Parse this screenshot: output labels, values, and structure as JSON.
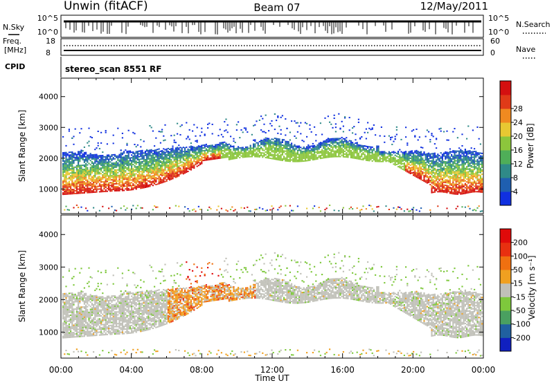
{
  "header": {
    "title": "Unwin (fitACF)",
    "beam": "Beam 07",
    "date": "12/May/2011"
  },
  "nsky": {
    "label": "N.Sky",
    "ticks": [
      "10^5",
      "10^0"
    ],
    "right_label": "N.Search",
    "right_ticks": [
      "10^5",
      "10^0"
    ]
  },
  "freq": {
    "label_line1": "Freq.",
    "label_line2": "[MHz]",
    "ticks": [
      "18",
      "8"
    ],
    "right_label": "Nave",
    "right_ticks": [
      "60",
      "0"
    ]
  },
  "cpid": {
    "label": "CPID",
    "text": "stereo_scan 8551 RF"
  },
  "x_axis": {
    "ticks": [
      "00:00",
      "04:00",
      "08:00",
      "12:00",
      "16:00",
      "20:00",
      "00:00"
    ],
    "label": "Time UT"
  },
  "chart_data": [
    {
      "type": "heatmap",
      "panel": "power",
      "ylabel": "Slant Range [km]",
      "yticks": [
        "1000",
        "2000",
        "3000",
        "4000"
      ],
      "ylim": [
        200,
        4600
      ],
      "xlim_hours": [
        0,
        24
      ],
      "colorbar": {
        "label": "Power [dB]",
        "ticks": [
          "4",
          "8",
          "12",
          "16",
          "20",
          "24",
          "28"
        ],
        "colors": [
          "#1030e0",
          "#1f5fb0",
          "#2f8a88",
          "#4fae58",
          "#8cc63c",
          "#e8c832",
          "#f08a20",
          "#e03a18",
          "#d41010"
        ]
      }
    },
    {
      "type": "heatmap",
      "panel": "velocity",
      "ylabel": "Slant Range [km]",
      "yticks": [
        "1000",
        "2000",
        "3000",
        "4000"
      ],
      "ylim": [
        200,
        4600
      ],
      "xlim_hours": [
        0,
        24
      ],
      "colorbar": {
        "label": "Velocity [m s⁻¹]",
        "ticks": [
          "200",
          "100",
          "50",
          "15",
          "-15",
          "-50",
          "-100",
          "-200"
        ],
        "colors": [
          "#1020c0",
          "#2060a0",
          "#4aa060",
          "#7ec83c",
          "#c0c0b8",
          "#f0a020",
          "#f07010",
          "#e83010",
          "#e00a0a"
        ]
      }
    }
  ]
}
